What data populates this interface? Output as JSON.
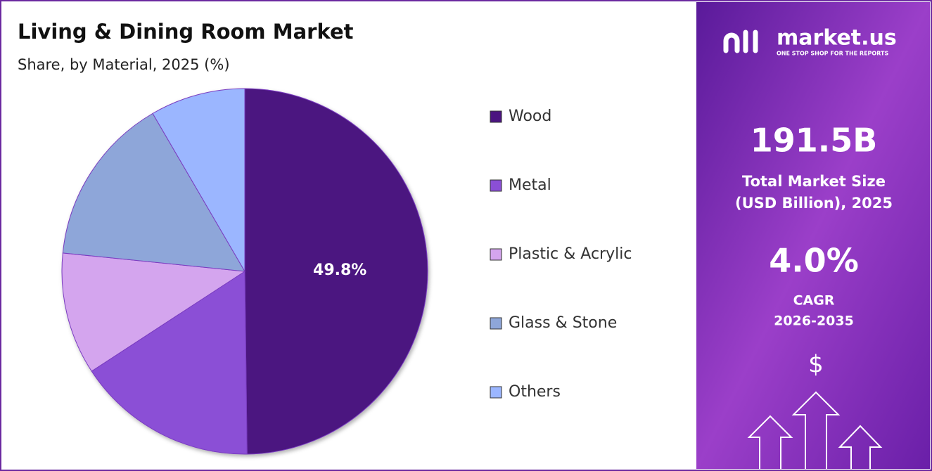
{
  "chart_data": {
    "type": "pie",
    "title": "Living & Dining Room Market",
    "subtitle": "Share, by Material, 2025 (%)",
    "categories": [
      "Wood",
      "Metal",
      "Plastic & Acrylic",
      "Glass & Stone",
      "Others"
    ],
    "values": [
      49.8,
      16,
      10.8,
      15,
      8.4
    ],
    "value_labels": [
      "49.8%",
      null,
      null,
      null,
      null
    ],
    "colors": [
      "#4b1480",
      "#8b4fd6",
      "#d4a5ee",
      "#8ea6d9",
      "#9bb6ff"
    ],
    "legend": "right"
  },
  "panel": {
    "brand": "market.us",
    "tagline": "ONE STOP SHOP FOR THE REPORTS",
    "market_size": "191.5B",
    "market_size_label": [
      "Total Market Size",
      "(USD Billion), 2025"
    ],
    "cagr": "4.0%",
    "cagr_label": [
      "CAGR",
      "2026-2035"
    ],
    "currency": "$"
  }
}
